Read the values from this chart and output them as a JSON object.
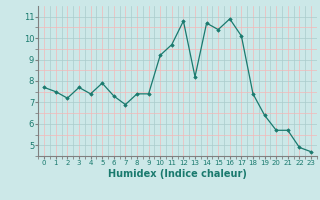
{
  "x": [
    0,
    1,
    2,
    3,
    4,
    5,
    6,
    7,
    8,
    9,
    10,
    11,
    12,
    13,
    14,
    15,
    16,
    17,
    18,
    19,
    20,
    21,
    22,
    23
  ],
  "y": [
    7.7,
    7.5,
    7.2,
    7.7,
    7.4,
    7.9,
    7.3,
    6.9,
    7.4,
    7.4,
    9.2,
    9.7,
    10.8,
    8.2,
    10.7,
    10.4,
    10.9,
    10.1,
    7.4,
    6.4,
    5.7,
    5.7,
    4.9,
    4.7
  ],
  "xlabel": "Humidex (Indice chaleur)",
  "xlim": [
    -0.5,
    23.5
  ],
  "ylim": [
    4.5,
    11.5
  ],
  "yticks": [
    5,
    6,
    7,
    8,
    9,
    10,
    11
  ],
  "xticks": [
    0,
    1,
    2,
    3,
    4,
    5,
    6,
    7,
    8,
    9,
    10,
    11,
    12,
    13,
    14,
    15,
    16,
    17,
    18,
    19,
    20,
    21,
    22,
    23
  ],
  "line_color": "#1a7a6e",
  "marker": "D",
  "marker_size": 1.8,
  "bg_color": "#cce8e8",
  "grid_color_major": "#aacccc",
  "grid_color_minor": "#f4b8b8",
  "axis_color": "#808080",
  "label_color": "#1a7a6e",
  "tick_color": "#1a7a6e",
  "xlabel_fontsize": 7,
  "ytick_fontsize": 6,
  "xtick_fontsize": 5
}
